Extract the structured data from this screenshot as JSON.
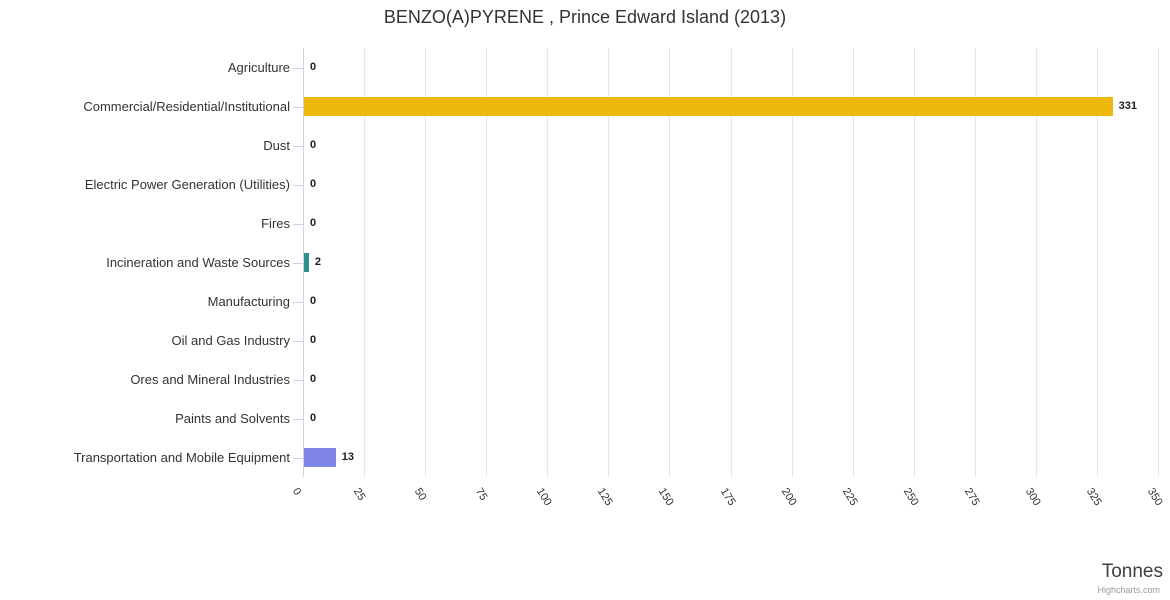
{
  "title": "BENZO(A)PYRENE , Prince Edward Island (2013)",
  "credit": "Highcharts.com",
  "chart_data": {
    "type": "bar",
    "orientation": "horizontal",
    "title": "BENZO(A)PYRENE , Prince Edward Island (2013)",
    "categories": [
      "Agriculture",
      "Commercial/Residential/Institutional",
      "Dust",
      "Electric Power Generation (Utilities)",
      "Fires",
      "Incineration and Waste Sources",
      "Manufacturing",
      "Oil and Gas Industry",
      "Ores and Mineral Industries",
      "Paints and Solvents",
      "Transportation and Mobile Equipment"
    ],
    "values": [
      0,
      331,
      0,
      0,
      0,
      2,
      0,
      0,
      0,
      0,
      13
    ],
    "bar_colors": [
      "#7cb5ec",
      "#edb90f",
      "#7cb5ec",
      "#7cb5ec",
      "#7cb5ec",
      "#2b908f",
      "#7cb5ec",
      "#7cb5ec",
      "#7cb5ec",
      "#7cb5ec",
      "#8085e9"
    ],
    "xlabel": "Tonnes",
    "xlim": [
      0,
      350
    ],
    "tick_interval": 25,
    "x_ticks": [
      "0",
      "25",
      "50",
      "75",
      "100",
      "125",
      "150",
      "175",
      "200",
      "225",
      "250",
      "275",
      "300",
      "325",
      "350"
    ],
    "grid": true,
    "legend": "none",
    "style_colors": {
      "grid": "#e6e6e6",
      "axis": "#ccd6eb",
      "title_text": "#333333",
      "category_text": "#333333",
      "tick_text": "#333333",
      "value_text": "#1c1c24",
      "credit_text": "#999999"
    }
  }
}
